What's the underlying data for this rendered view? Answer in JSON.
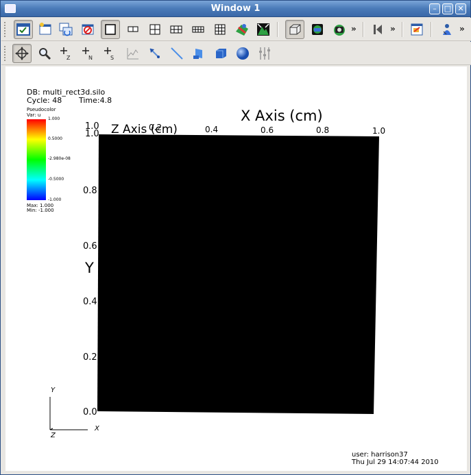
{
  "window": {
    "title": "Window 1"
  },
  "toolbar_top": {
    "icons": [
      "interaction-mode-icon",
      "new-window-icon",
      "clone-window-icon",
      "delete-window-icon",
      "layout-1x1-icon",
      "layout-1x2-icon",
      "layout-2x2-icon",
      "layout-2x3-icon",
      "layout-2x4-icon",
      "layout-3x3-icon",
      "invert-background-icon",
      "recenter-icon",
      "perspective-box-icon",
      "lock-view-icon",
      "lock-time-icon",
      "animation-icon",
      "save-window-icon",
      "annotation-icon"
    ],
    "overflow": "»"
  },
  "toolbar_bottom": {
    "icons": [
      "navigate-icon",
      "zoom-icon",
      "zone-pick-icon",
      "node-pick-icon",
      "spreadsheet-pick-icon",
      "curve-pick-icon",
      "point-tool-icon",
      "line-tool-icon",
      "plane-tool-icon",
      "box-tool-icon",
      "sphere-tool-icon",
      "axis-restriction-icon"
    ],
    "pick_labels": [
      "Z",
      "N",
      "S"
    ]
  },
  "viewer": {
    "db_label": "DB: multi_rect3d.silo",
    "cycle_label": "Cycle: 48",
    "time_label": "Time:4.8",
    "legend": {
      "title": "Pseudocolor",
      "var": "Var: u",
      "ticks": [
        "1.000",
        "0.5000",
        "-2.980e-08",
        "-0.5000",
        "-1.000"
      ],
      "max": "Max: 1.000",
      "min": "Min: -1.000"
    },
    "x_axis_title": "X Axis (cm)",
    "z_axis_title": "Z Axis (cm)",
    "y_axis_letter": "Y",
    "x_ticks": [
      "0.2",
      "0.4",
      "0.6",
      "0.8",
      "1.0"
    ],
    "z_ticks": [
      "1.0",
      "1.0"
    ],
    "y_ticks": [
      "0.8",
      "0.6",
      "0.4",
      "0.2",
      "0.0"
    ],
    "triad": {
      "y": "Y",
      "x": "X",
      "z": "Z"
    },
    "user": "user: harrison37",
    "date": "Thu Jul 29 14:07:44 2010"
  },
  "colors": {
    "plot_fill": "#000000",
    "title_bar": "#4a7ab8",
    "background": "#ffffff"
  }
}
